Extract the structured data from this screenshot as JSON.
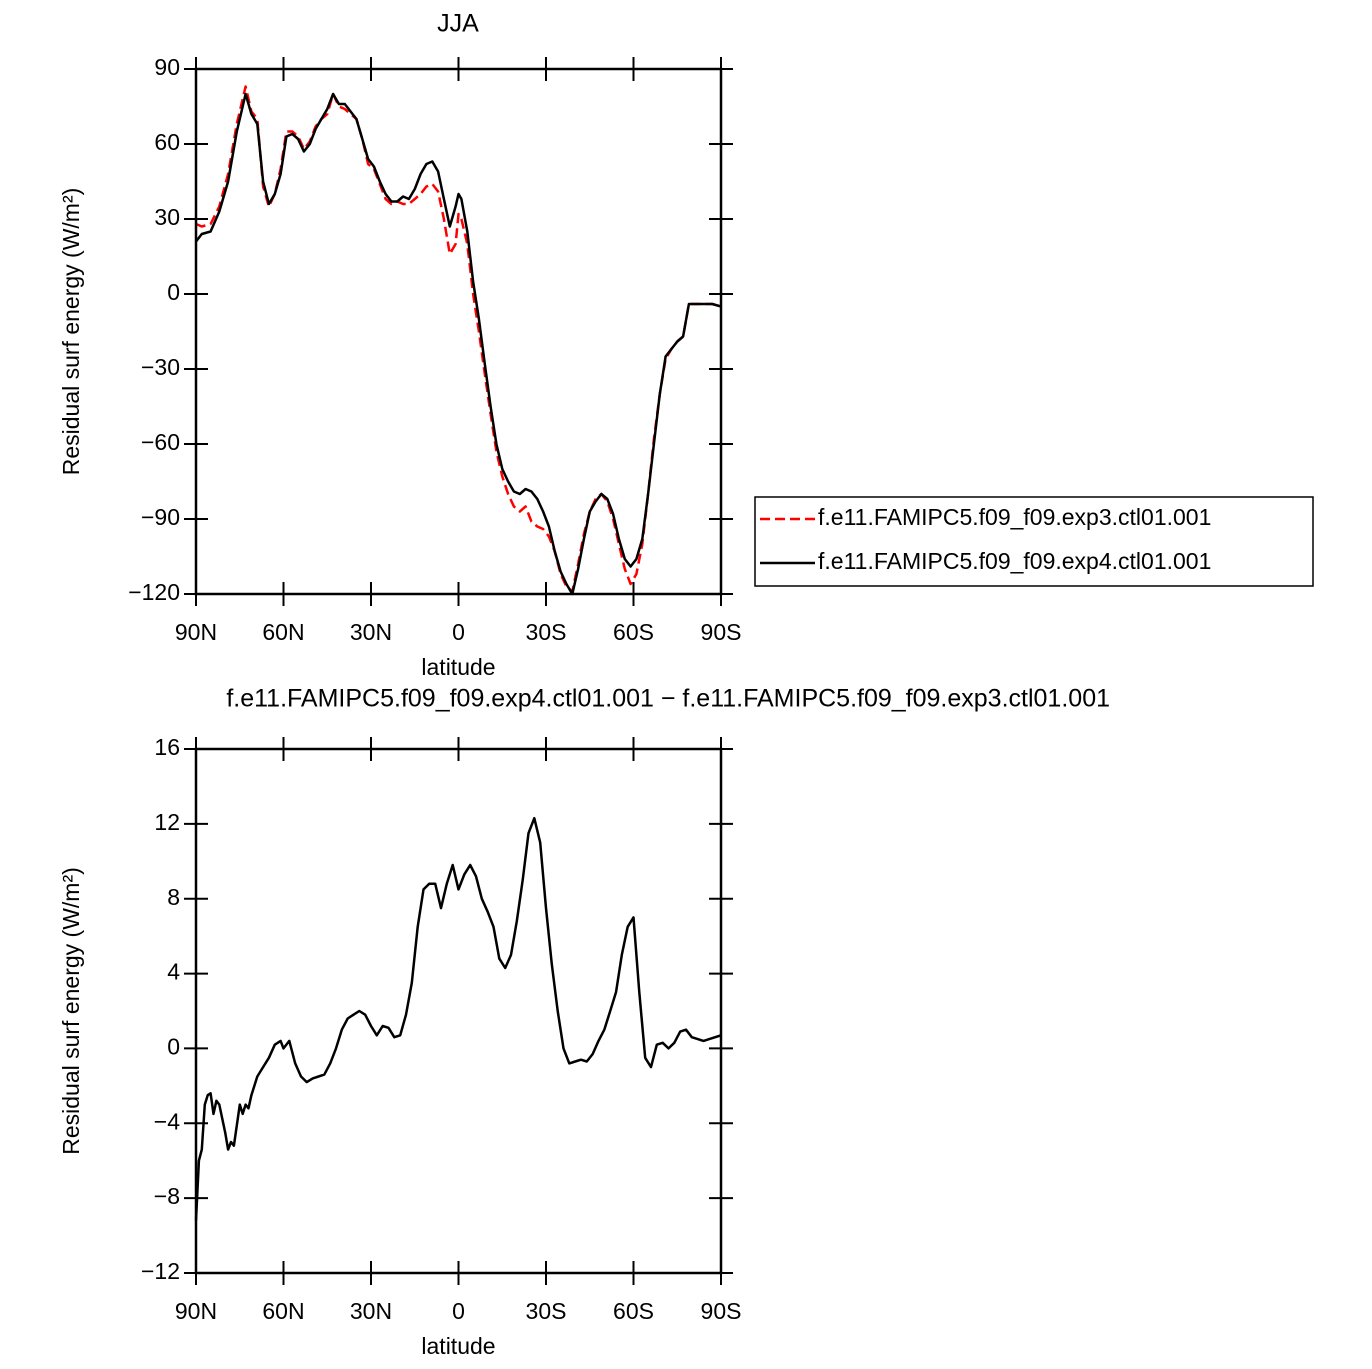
{
  "chart_data": [
    {
      "type": "line",
      "title": "JJA",
      "xlabel": "latitude",
      "ylabel": "Residual surf energy (W/m²)",
      "x": [
        90,
        88,
        85,
        82,
        79,
        76,
        73,
        71,
        69,
        67,
        65,
        63,
        61,
        59,
        57,
        55,
        53,
        51,
        49,
        47,
        45,
        43,
        41,
        39,
        37,
        35,
        33,
        31,
        29,
        27,
        25,
        23,
        21,
        19,
        17,
        15,
        13,
        11,
        9,
        7,
        5,
        3,
        1,
        0,
        -1,
        -3,
        -5,
        -7,
        -9,
        -11,
        -13,
        -15,
        -17,
        -19,
        -21,
        -23,
        -25,
        -27,
        -29,
        -31,
        -33,
        -35,
        -37,
        -39,
        -41,
        -43,
        -45,
        -47,
        -49,
        -51,
        -53,
        -55,
        -57,
        -59,
        -61,
        -63,
        -65,
        -67,
        -69,
        -71,
        -73,
        -75,
        -77,
        -79,
        -81,
        -83,
        -85,
        -87,
        -90
      ],
      "series": [
        {
          "name": "f.e11.FAMIPC5.f09_f09.exp3.ctl01.001",
          "color": "#ff0000",
          "style": "dashed",
          "values": [
            28,
            27,
            28,
            35,
            48,
            68,
            83,
            73,
            70,
            43,
            35,
            40,
            50,
            65,
            65,
            63,
            58,
            61,
            67,
            70,
            72,
            80,
            75,
            74,
            72,
            70,
            62,
            52,
            50,
            44,
            38,
            36,
            37,
            36,
            36,
            38,
            40,
            43,
            44,
            41,
            30,
            16,
            20,
            32,
            30,
            20,
            0,
            -15,
            -32,
            -48,
            -63,
            -73,
            -80,
            -85,
            -87,
            -85,
            -91,
            -93,
            -94,
            -97,
            -103,
            -112,
            -117,
            -119,
            -108,
            -96,
            -87,
            -82,
            -80,
            -83,
            -90,
            -100,
            -110,
            -116,
            -112,
            -100,
            -80,
            -58,
            -40,
            -26,
            -22,
            -19,
            -17,
            -4,
            -4,
            -4,
            -4,
            -4,
            -5
          ]
        },
        {
          "name": "f.e11.FAMIPC5.f09_f09.exp4.ctl01.001",
          "color": "#000000",
          "style": "solid",
          "values": [
            21,
            24,
            25,
            33,
            45,
            65,
            80,
            72,
            68,
            45,
            36,
            40,
            48,
            63,
            64,
            62,
            57,
            60,
            66,
            70,
            74,
            80,
            76,
            76,
            73,
            70,
            62,
            54,
            51,
            45,
            40,
            37,
            37,
            39,
            38,
            42,
            48,
            52,
            53,
            49,
            38,
            27,
            35,
            40,
            38,
            25,
            5,
            -10,
            -28,
            -45,
            -60,
            -70,
            -75,
            -79,
            -80,
            -78,
            -79,
            -82,
            -87,
            -93,
            -103,
            -111,
            -116,
            -120,
            -110,
            -98,
            -87,
            -83,
            -80,
            -82,
            -88,
            -98,
            -106,
            -109,
            -106,
            -98,
            -80,
            -60,
            -40,
            -25,
            -22,
            -19,
            -17,
            -4,
            -4,
            -4,
            -4,
            -4,
            -5
          ]
        }
      ],
      "xlim": [
        90,
        -90
      ],
      "xticks": [
        {
          "value": 90,
          "label": "90N"
        },
        {
          "value": 60,
          "label": "60N"
        },
        {
          "value": 30,
          "label": "30N"
        },
        0,
        {
          "value": -30,
          "label": "30S"
        },
        {
          "value": -60,
          "label": "60S"
        },
        {
          "value": -90,
          "label": "90S"
        }
      ],
      "ylim": [
        -120,
        90
      ],
      "yticks": [
        {
          "value": -120,
          "label": "−120"
        },
        {
          "value": -90,
          "label": "−90"
        },
        {
          "value": -60,
          "label": "−60"
        },
        {
          "value": -30,
          "label": "−30"
        },
        0,
        30,
        60,
        90
      ],
      "legend": "right"
    },
    {
      "type": "line",
      "title": "f.e11.FAMIPC5.f09_f09.exp4.ctl01.001 − f.e11.FAMIPC5.f09_f09.exp3.ctl01.001",
      "xlabel": "latitude",
      "ylabel": "Residual surf energy (W/m²)",
      "x": [
        90,
        89,
        88,
        87,
        86,
        85,
        84,
        83,
        82,
        80,
        79,
        78,
        77,
        75,
        74,
        73,
        72,
        71,
        69,
        67,
        65,
        63,
        61,
        60,
        58,
        56,
        54,
        52,
        50,
        48,
        46,
        44,
        42,
        40,
        38,
        36,
        34,
        32,
        30,
        28,
        26,
        24,
        22,
        20,
        18,
        16,
        14,
        12,
        10,
        8,
        6,
        4,
        2,
        0,
        -2,
        -4,
        -6,
        -8,
        -10,
        -12,
        -14,
        -16,
        -18,
        -20,
        -22,
        -24,
        -26,
        -28,
        -30,
        -32,
        -34,
        -36,
        -38,
        -40,
        -42,
        -44,
        -46,
        -48,
        -50,
        -52,
        -54,
        -56,
        -58,
        -60,
        -62,
        -64,
        -66,
        -68,
        -70,
        -72,
        -74,
        -76,
        -78,
        -80,
        -82,
        -84,
        -86,
        -88,
        -90
      ],
      "values": [
        -9.2,
        -6,
        -5.4,
        -3,
        -2.5,
        -2.4,
        -3.5,
        -2.8,
        -3,
        -4.5,
        -5.4,
        -5,
        -5.2,
        -3,
        -3.5,
        -3,
        -3.2,
        -2.5,
        -1.5,
        -1,
        -0.5,
        0.2,
        0.4,
        0,
        0.4,
        -0.8,
        -1.5,
        -1.8,
        -1.6,
        -1.5,
        -1.4,
        -0.8,
        0,
        1,
        1.6,
        1.8,
        2.0,
        1.8,
        1.2,
        0.7,
        1.2,
        1.1,
        0.6,
        0.7,
        1.8,
        3.5,
        6.5,
        8.5,
        8.8,
        8.8,
        7.5,
        8.8,
        9.8,
        8.5,
        9.3,
        9.8,
        9.2,
        8.0,
        7.3,
        6.5,
        4.8,
        4.3,
        5,
        6.8,
        9,
        11.5,
        12.3,
        11,
        7.5,
        4.5,
        2,
        0,
        -0.8,
        -0.7,
        -0.6,
        -0.7,
        -0.3,
        0.4,
        1,
        2,
        3,
        5,
        6.5,
        7,
        3,
        -0.5,
        -1,
        0.2,
        0.3,
        0,
        0.3,
        0.9,
        1.0,
        0.6,
        0.5,
        0.4,
        0.5,
        0.6,
        0.7
      ],
      "color": "#000000",
      "xlim": [
        90,
        -90
      ],
      "xticks": [
        {
          "value": 90,
          "label": "90N"
        },
        {
          "value": 60,
          "label": "60N"
        },
        {
          "value": 30,
          "label": "30N"
        },
        0,
        {
          "value": -30,
          "label": "30S"
        },
        {
          "value": -60,
          "label": "60S"
        },
        {
          "value": -90,
          "label": "90S"
        }
      ],
      "ylim": [
        -12,
        16
      ],
      "yticks": [
        {
          "value": -12,
          "label": "−12"
        },
        {
          "value": -8,
          "label": "−8"
        },
        {
          "value": -4,
          "label": "−4"
        },
        0,
        4,
        8,
        12,
        16
      ]
    }
  ]
}
